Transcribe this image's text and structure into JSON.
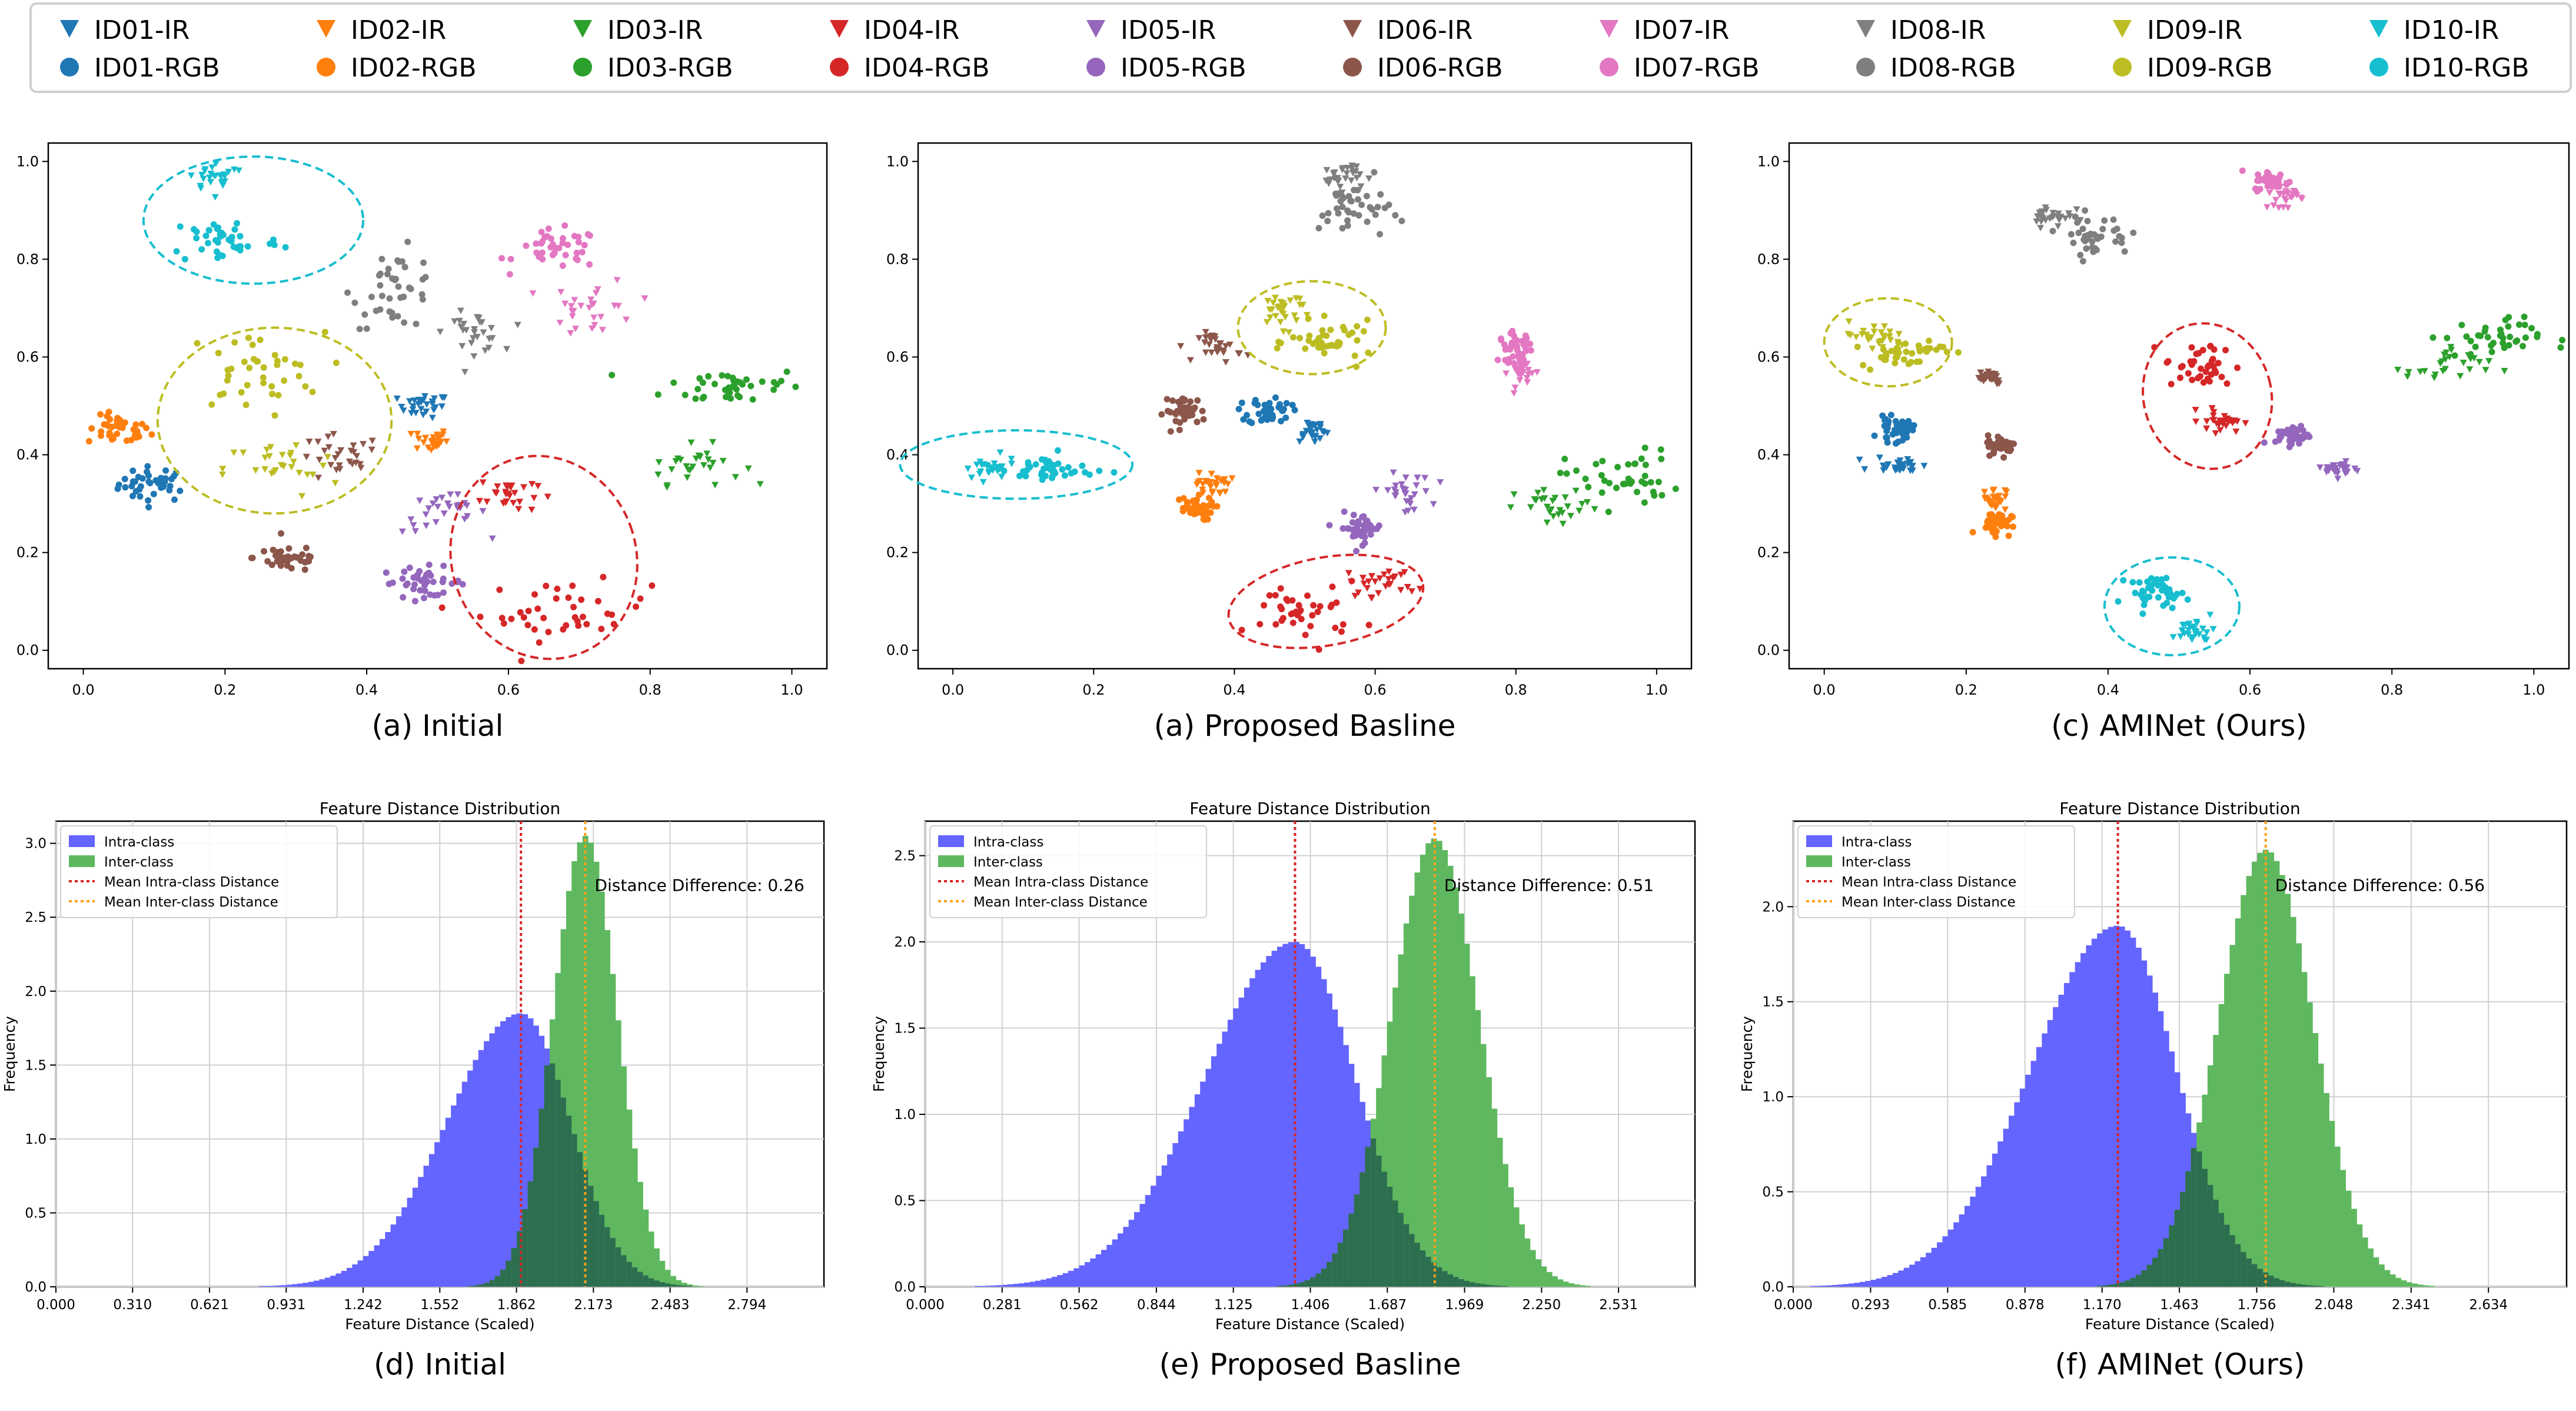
{
  "legend": {
    "items": [
      {
        "label": "ID01-IR",
        "kind": "IR",
        "color": "#1f77b4"
      },
      {
        "label": "ID02-IR",
        "kind": "IR",
        "color": "#ff7f0e"
      },
      {
        "label": "ID03-IR",
        "kind": "IR",
        "color": "#2ca02c"
      },
      {
        "label": "ID04-IR",
        "kind": "IR",
        "color": "#d62728"
      },
      {
        "label": "ID05-IR",
        "kind": "IR",
        "color": "#9467bd"
      },
      {
        "label": "ID06-IR",
        "kind": "IR",
        "color": "#8c564b"
      },
      {
        "label": "ID07-IR",
        "kind": "IR",
        "color": "#e377c2"
      },
      {
        "label": "ID08-IR",
        "kind": "IR",
        "color": "#7f7f7f"
      },
      {
        "label": "ID09-IR",
        "kind": "IR",
        "color": "#bcbd22"
      },
      {
        "label": "ID10-IR",
        "kind": "IR",
        "color": "#17becf"
      },
      {
        "label": "ID01-RGB",
        "kind": "RGB",
        "color": "#1f77b4"
      },
      {
        "label": "ID02-RGB",
        "kind": "RGB",
        "color": "#ff7f0e"
      },
      {
        "label": "ID03-RGB",
        "kind": "RGB",
        "color": "#2ca02c"
      },
      {
        "label": "ID04-RGB",
        "kind": "RGB",
        "color": "#d62728"
      },
      {
        "label": "ID05-RGB",
        "kind": "RGB",
        "color": "#9467bd"
      },
      {
        "label": "ID06-RGB",
        "kind": "RGB",
        "color": "#8c564b"
      },
      {
        "label": "ID07-RGB",
        "kind": "RGB",
        "color": "#e377c2"
      },
      {
        "label": "ID08-RGB",
        "kind": "RGB",
        "color": "#7f7f7f"
      },
      {
        "label": "ID09-RGB",
        "kind": "RGB",
        "color": "#bcbd22"
      },
      {
        "label": "ID10-RGB",
        "kind": "RGB",
        "color": "#17becf"
      }
    ]
  },
  "chart_data": [
    {
      "type": "scatter",
      "caption": "(a) Initial",
      "xlim": [
        0,
        1
      ],
      "ylim": [
        0,
        1
      ],
      "xticks": [
        "0.0",
        "0.2",
        "0.4",
        "0.6",
        "0.8",
        "1.0"
      ],
      "yticks": [
        "0.0",
        "0.2",
        "0.4",
        "0.6",
        "0.8",
        "1.0"
      ],
      "clusters": [
        {
          "id": "ID01",
          "kind": "RGB",
          "cx": 0.1,
          "cy": 0.34,
          "sx": 0.025,
          "sy": 0.018
        },
        {
          "id": "ID01",
          "kind": "IR",
          "cx": 0.48,
          "cy": 0.5,
          "sx": 0.018,
          "sy": 0.012
        },
        {
          "id": "ID02",
          "kind": "RGB",
          "cx": 0.05,
          "cy": 0.45,
          "sx": 0.022,
          "sy": 0.015
        },
        {
          "id": "ID02",
          "kind": "IR",
          "cx": 0.49,
          "cy": 0.43,
          "sx": 0.012,
          "sy": 0.012
        },
        {
          "id": "ID03",
          "kind": "RGB",
          "cx": 0.92,
          "cy": 0.54,
          "sx": 0.05,
          "sy": 0.02
        },
        {
          "id": "ID03",
          "kind": "IR",
          "cx": 0.86,
          "cy": 0.38,
          "sx": 0.035,
          "sy": 0.02
        },
        {
          "id": "ID04",
          "kind": "IR",
          "cx": 0.6,
          "cy": 0.32,
          "sx": 0.02,
          "sy": 0.02
        },
        {
          "id": "ID04",
          "kind": "RGB",
          "cx": 0.68,
          "cy": 0.08,
          "sx": 0.06,
          "sy": 0.03
        },
        {
          "id": "ID05",
          "kind": "RGB",
          "cx": 0.48,
          "cy": 0.14,
          "sx": 0.03,
          "sy": 0.015
        },
        {
          "id": "ID05",
          "kind": "IR",
          "cx": 0.51,
          "cy": 0.28,
          "sx": 0.03,
          "sy": 0.02
        },
        {
          "id": "ID06",
          "kind": "RGB",
          "cx": 0.29,
          "cy": 0.19,
          "sx": 0.025,
          "sy": 0.015
        },
        {
          "id": "ID06",
          "kind": "IR",
          "cx": 0.36,
          "cy": 0.39,
          "sx": 0.03,
          "sy": 0.025
        },
        {
          "id": "ID07",
          "kind": "RGB",
          "cx": 0.67,
          "cy": 0.82,
          "sx": 0.03,
          "sy": 0.02
        },
        {
          "id": "ID07",
          "kind": "IR",
          "cx": 0.72,
          "cy": 0.7,
          "sx": 0.03,
          "sy": 0.03
        },
        {
          "id": "ID08",
          "kind": "RGB",
          "cx": 0.44,
          "cy": 0.74,
          "sx": 0.03,
          "sy": 0.04
        },
        {
          "id": "ID08",
          "kind": "IR",
          "cx": 0.55,
          "cy": 0.65,
          "sx": 0.02,
          "sy": 0.02
        },
        {
          "id": "ID09",
          "kind": "RGB",
          "cx": 0.24,
          "cy": 0.57,
          "sx": 0.05,
          "sy": 0.04
        },
        {
          "id": "ID09",
          "kind": "IR",
          "cx": 0.28,
          "cy": 0.37,
          "sx": 0.04,
          "sy": 0.03
        },
        {
          "id": "ID10",
          "kind": "RGB",
          "cx": 0.2,
          "cy": 0.84,
          "sx": 0.04,
          "sy": 0.025
        },
        {
          "id": "ID10",
          "kind": "IR",
          "cx": 0.19,
          "cy": 0.97,
          "sx": 0.02,
          "sy": 0.015
        }
      ],
      "ellipses": [
        {
          "id": "ID10",
          "cx": 0.24,
          "cy": 0.88,
          "rx": 0.155,
          "ry": 0.13,
          "angle": 0
        },
        {
          "id": "ID09",
          "cx": 0.27,
          "cy": 0.47,
          "rx": 0.165,
          "ry": 0.19,
          "angle": 0
        },
        {
          "id": "ID04",
          "cx": 0.65,
          "cy": 0.19,
          "rx": 0.13,
          "ry": 0.21,
          "angle": -20
        }
      ]
    },
    {
      "type": "scatter",
      "caption": "(a) Proposed Basline",
      "xlim": [
        0,
        1
      ],
      "ylim": [
        0,
        1
      ],
      "xticks": [
        "0.0",
        "0.2",
        "0.4",
        "0.6",
        "0.8",
        "1.0"
      ],
      "yticks": [
        "0.0",
        "0.2",
        "0.4",
        "0.6",
        "0.8",
        "1.0"
      ],
      "clusters": [
        {
          "id": "ID01",
          "kind": "RGB",
          "cx": 0.45,
          "cy": 0.49,
          "sx": 0.015,
          "sy": 0.015
        },
        {
          "id": "ID01",
          "kind": "IR",
          "cx": 0.51,
          "cy": 0.45,
          "sx": 0.012,
          "sy": 0.012
        },
        {
          "id": "ID02",
          "kind": "RGB",
          "cx": 0.34,
          "cy": 0.29,
          "sx": 0.015,
          "sy": 0.012
        },
        {
          "id": "ID02",
          "kind": "IR",
          "cx": 0.37,
          "cy": 0.34,
          "sx": 0.012,
          "sy": 0.012
        },
        {
          "id": "ID03",
          "kind": "RGB",
          "cx": 0.95,
          "cy": 0.35,
          "sx": 0.04,
          "sy": 0.03
        },
        {
          "id": "ID03",
          "kind": "IR",
          "cx": 0.86,
          "cy": 0.29,
          "sx": 0.03,
          "sy": 0.02
        },
        {
          "id": "ID04",
          "kind": "RGB",
          "cx": 0.5,
          "cy": 0.08,
          "sx": 0.04,
          "sy": 0.03
        },
        {
          "id": "ID04",
          "kind": "IR",
          "cx": 0.61,
          "cy": 0.14,
          "sx": 0.025,
          "sy": 0.015
        },
        {
          "id": "ID05",
          "kind": "IR",
          "cx": 0.64,
          "cy": 0.32,
          "sx": 0.02,
          "sy": 0.02
        },
        {
          "id": "ID05",
          "kind": "RGB",
          "cx": 0.58,
          "cy": 0.25,
          "sx": 0.015,
          "sy": 0.015
        },
        {
          "id": "ID06",
          "kind": "RGB",
          "cx": 0.33,
          "cy": 0.49,
          "sx": 0.015,
          "sy": 0.015
        },
        {
          "id": "ID06",
          "kind": "IR",
          "cx": 0.38,
          "cy": 0.62,
          "sx": 0.015,
          "sy": 0.015
        },
        {
          "id": "ID07",
          "kind": "RGB",
          "cx": 0.8,
          "cy": 0.62,
          "sx": 0.012,
          "sy": 0.015
        },
        {
          "id": "ID07",
          "kind": "IR",
          "cx": 0.81,
          "cy": 0.57,
          "sx": 0.01,
          "sy": 0.015
        },
        {
          "id": "ID08",
          "kind": "IR",
          "cx": 0.55,
          "cy": 0.97,
          "sx": 0.015,
          "sy": 0.015
        },
        {
          "id": "ID08",
          "kind": "RGB",
          "cx": 0.57,
          "cy": 0.9,
          "sx": 0.025,
          "sy": 0.03
        },
        {
          "id": "ID09",
          "kind": "IR",
          "cx": 0.47,
          "cy": 0.7,
          "sx": 0.02,
          "sy": 0.02
        },
        {
          "id": "ID09",
          "kind": "RGB",
          "cx": 0.54,
          "cy": 0.63,
          "sx": 0.03,
          "sy": 0.02
        },
        {
          "id": "ID10",
          "kind": "IR",
          "cx": 0.05,
          "cy": 0.37,
          "sx": 0.02,
          "sy": 0.012
        },
        {
          "id": "ID10",
          "kind": "RGB",
          "cx": 0.14,
          "cy": 0.37,
          "sx": 0.03,
          "sy": 0.015
        }
      ],
      "ellipses": [
        {
          "id": "ID09",
          "cx": 0.51,
          "cy": 0.66,
          "rx": 0.105,
          "ry": 0.095,
          "angle": 0
        },
        {
          "id": "ID10",
          "cx": 0.09,
          "cy": 0.38,
          "rx": 0.165,
          "ry": 0.07,
          "angle": 0
        },
        {
          "id": "ID04",
          "cx": 0.53,
          "cy": 0.1,
          "rx": 0.14,
          "ry": 0.09,
          "angle": -10
        }
      ]
    },
    {
      "type": "scatter",
      "caption": "(c) AMINet (Ours)",
      "xlim": [
        0,
        1
      ],
      "ylim": [
        0,
        1
      ],
      "xticks": [
        "0.0",
        "0.2",
        "0.4",
        "0.6",
        "0.8",
        "1.0"
      ],
      "yticks": [
        "0.0",
        "0.2",
        "0.4",
        "0.6",
        "0.8",
        "1.0"
      ],
      "clusters": [
        {
          "id": "ID01",
          "kind": "RGB",
          "cx": 0.1,
          "cy": 0.45,
          "sx": 0.012,
          "sy": 0.012
        },
        {
          "id": "ID01",
          "kind": "IR",
          "cx": 0.11,
          "cy": 0.38,
          "sx": 0.02,
          "sy": 0.008
        },
        {
          "id": "ID02",
          "kind": "IR",
          "cx": 0.24,
          "cy": 0.31,
          "sx": 0.008,
          "sy": 0.012
        },
        {
          "id": "ID02",
          "kind": "RGB",
          "cx": 0.24,
          "cy": 0.26,
          "sx": 0.012,
          "sy": 0.012
        },
        {
          "id": "ID03",
          "kind": "RGB",
          "cx": 0.94,
          "cy": 0.64,
          "sx": 0.035,
          "sy": 0.02
        },
        {
          "id": "ID03",
          "kind": "IR",
          "cx": 0.88,
          "cy": 0.58,
          "sx": 0.03,
          "sy": 0.02
        },
        {
          "id": "ID04",
          "kind": "RGB",
          "cx": 0.53,
          "cy": 0.58,
          "sx": 0.025,
          "sy": 0.025
        },
        {
          "id": "ID04",
          "kind": "IR",
          "cx": 0.56,
          "cy": 0.47,
          "sx": 0.015,
          "sy": 0.012
        },
        {
          "id": "ID05",
          "kind": "RGB",
          "cx": 0.66,
          "cy": 0.44,
          "sx": 0.012,
          "sy": 0.01
        },
        {
          "id": "ID05",
          "kind": "IR",
          "cx": 0.73,
          "cy": 0.37,
          "sx": 0.012,
          "sy": 0.008
        },
        {
          "id": "ID06",
          "kind": "IR",
          "cx": 0.23,
          "cy": 0.56,
          "sx": 0.012,
          "sy": 0.008
        },
        {
          "id": "ID06",
          "kind": "RGB",
          "cx": 0.25,
          "cy": 0.42,
          "sx": 0.01,
          "sy": 0.01
        },
        {
          "id": "ID07",
          "kind": "RGB",
          "cx": 0.63,
          "cy": 0.96,
          "sx": 0.012,
          "sy": 0.01
        },
        {
          "id": "ID07",
          "kind": "IR",
          "cx": 0.65,
          "cy": 0.93,
          "sx": 0.015,
          "sy": 0.015
        },
        {
          "id": "ID08",
          "kind": "IR",
          "cx": 0.32,
          "cy": 0.89,
          "sx": 0.015,
          "sy": 0.012
        },
        {
          "id": "ID08",
          "kind": "RGB",
          "cx": 0.38,
          "cy": 0.85,
          "sx": 0.025,
          "sy": 0.02
        },
        {
          "id": "ID09",
          "kind": "IR",
          "cx": 0.07,
          "cy": 0.64,
          "sx": 0.025,
          "sy": 0.015
        },
        {
          "id": "ID09",
          "kind": "RGB",
          "cx": 0.11,
          "cy": 0.61,
          "sx": 0.03,
          "sy": 0.015
        },
        {
          "id": "ID10",
          "kind": "RGB",
          "cx": 0.47,
          "cy": 0.12,
          "sx": 0.02,
          "sy": 0.015
        },
        {
          "id": "ID10",
          "kind": "IR",
          "cx": 0.52,
          "cy": 0.04,
          "sx": 0.015,
          "sy": 0.012
        }
      ],
      "ellipses": [
        {
          "id": "ID09",
          "cx": 0.09,
          "cy": 0.63,
          "rx": 0.09,
          "ry": 0.09,
          "angle": 0
        },
        {
          "id": "ID04",
          "cx": 0.54,
          "cy": 0.52,
          "rx": 0.09,
          "ry": 0.15,
          "angle": -15
        },
        {
          "id": "ID10",
          "cx": 0.49,
          "cy": 0.09,
          "rx": 0.095,
          "ry": 0.1,
          "angle": 0
        }
      ]
    },
    {
      "type": "histogram",
      "caption": "(d) Initial",
      "title": "Feature Distance Distribution",
      "xlabel": "Feature Distance (Scaled)",
      "ylabel": "Frequency",
      "xlim": [
        0.0,
        3.105
      ],
      "ylim": [
        0,
        3.15
      ],
      "xticks": [
        "0.000",
        "0.310",
        "0.621",
        "0.931",
        "1.242",
        "1.552",
        "1.862",
        "2.173",
        "2.483",
        "2.794"
      ],
      "yticks": [
        "0.0",
        "0.5",
        "1.0",
        "1.5",
        "2.0",
        "2.5",
        "3.0"
      ],
      "intra": {
        "mean": 1.88,
        "std": 0.2,
        "peak": 1.85,
        "skew": -3
      },
      "inter": {
        "mean": 2.14,
        "std": 0.13,
        "peak": 3.05,
        "skew": 0
      },
      "mean_intra_line": 1.88,
      "mean_inter_line": 2.14,
      "annotation": "Distance Difference: 0.26",
      "legend": [
        "Intra-class",
        "Inter-class",
        "Mean Intra-class Distance",
        "Mean Inter-class Distance"
      ]
    },
    {
      "type": "histogram",
      "caption": "(e) Proposed Basline",
      "title": "Feature Distance Distribution",
      "xlabel": "Feature Distance (Scaled)",
      "ylabel": "Frequency",
      "xlim": [
        0.0,
        2.81
      ],
      "ylim": [
        0,
        2.7
      ],
      "xticks": [
        "0.000",
        "0.281",
        "0.562",
        "0.844",
        "1.125",
        "1.406",
        "1.687",
        "1.969",
        "2.250",
        "2.531"
      ],
      "yticks": [
        "0.0",
        "0.5",
        "1.0",
        "1.5",
        "2.0",
        "2.5"
      ],
      "intra": {
        "mean": 1.35,
        "std": 0.22,
        "peak": 2.0,
        "skew": -3
      },
      "inter": {
        "mean": 1.86,
        "std": 0.16,
        "peak": 2.6,
        "skew": 0
      },
      "mean_intra_line": 1.35,
      "mean_inter_line": 1.86,
      "annotation": "Distance Difference: 0.51",
      "legend": [
        "Intra-class",
        "Inter-class",
        "Mean Intra-class Distance",
        "Mean Inter-class Distance"
      ]
    },
    {
      "type": "histogram",
      "caption": "(f) AMINet (Ours)",
      "title": "Feature Distance Distribution",
      "xlabel": "Feature Distance (Scaled)",
      "ylabel": "Frequency",
      "xlim": [
        0.0,
        2.93
      ],
      "ylim": [
        0,
        2.45
      ],
      "xticks": [
        "0.000",
        "0.293",
        "0.585",
        "0.878",
        "1.170",
        "1.463",
        "1.756",
        "2.048",
        "2.341",
        "2.634"
      ],
      "yticks": [
        "0.0",
        "0.5",
        "1.0",
        "1.5",
        "2.0"
      ],
      "intra": {
        "mean": 1.23,
        "std": 0.22,
        "peak": 1.9,
        "skew": -3
      },
      "inter": {
        "mean": 1.79,
        "std": 0.18,
        "peak": 2.3,
        "skew": 0
      },
      "mean_intra_line": 1.23,
      "mean_inter_line": 1.79,
      "annotation": "Distance Difference: 0.56",
      "legend": [
        "Intra-class",
        "Inter-class",
        "Mean Intra-class Distance",
        "Mean Inter-class Distance"
      ]
    }
  ]
}
